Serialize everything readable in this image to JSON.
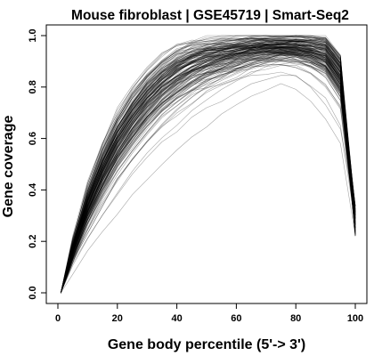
{
  "chart_data": {
    "type": "line",
    "title": "Mouse fibroblast | GSE45719 | Smart-Seq2",
    "xlabel": "Gene body percentile (5'-> 3')",
    "ylabel": "Gene coverage",
    "xlim": [
      0,
      100
    ],
    "ylim": [
      0,
      1
    ],
    "x_ticks": [
      0,
      20,
      40,
      60,
      80,
      100
    ],
    "y_ticks": [
      0.0,
      0.2,
      0.4,
      0.6,
      0.8,
      1.0
    ],
    "x_tick_labels": [
      "0",
      "20",
      "40",
      "60",
      "80",
      "100"
    ],
    "y_tick_labels": [
      "0.0",
      "0.2",
      "0.4",
      "0.6",
      "0.8",
      "1.0"
    ],
    "grid": false,
    "legend": "none",
    "series_color": "#000000",
    "n_series": 160,
    "x": [
      1,
      5,
      10,
      15,
      20,
      25,
      30,
      35,
      40,
      45,
      50,
      55,
      60,
      65,
      70,
      75,
      80,
      85,
      90,
      95,
      100
    ],
    "series_profiles": [
      {
        "values": [
          0.0,
          0.22,
          0.44,
          0.6,
          0.72,
          0.81,
          0.88,
          0.93,
          0.97,
          0.99,
          1.0,
          1.0,
          1.0,
          1.0,
          1.0,
          0.99,
          0.99,
          0.98,
          0.97,
          0.9,
          0.28
        ]
      },
      {
        "values": [
          0.0,
          0.17,
          0.35,
          0.49,
          0.61,
          0.7,
          0.78,
          0.84,
          0.89,
          0.93,
          0.96,
          0.98,
          0.99,
          1.0,
          1.0,
          1.0,
          1.0,
          1.0,
          1.0,
          0.93,
          0.28
        ]
      },
      {
        "values": [
          0.0,
          0.1,
          0.22,
          0.33,
          0.44,
          0.53,
          0.61,
          0.68,
          0.74,
          0.8,
          0.85,
          0.89,
          0.93,
          0.96,
          0.98,
          1.0,
          1.0,
          1.0,
          0.98,
          0.88,
          0.28
        ]
      },
      {
        "values": [
          0.0,
          0.06,
          0.13,
          0.2,
          0.28,
          0.35,
          0.42,
          0.49,
          0.55,
          0.61,
          0.67,
          0.72,
          0.77,
          0.82,
          0.86,
          0.9,
          0.93,
          0.96,
          0.97,
          0.9,
          0.28
        ]
      },
      {
        "values": [
          0.0,
          0.04,
          0.08,
          0.13,
          0.19,
          0.25,
          0.31,
          0.37,
          0.42,
          0.48,
          0.53,
          0.58,
          0.63,
          0.67,
          0.71,
          0.74,
          0.72,
          0.65,
          0.55,
          0.45,
          0.38
        ]
      },
      {
        "values": [
          0.0,
          0.2,
          0.42,
          0.6,
          0.75,
          0.86,
          0.94,
          0.99,
          1.0,
          0.98,
          0.95,
          0.92,
          0.9,
          0.88,
          0.86,
          0.84,
          0.82,
          0.78,
          0.72,
          0.6,
          0.28
        ]
      }
    ]
  }
}
